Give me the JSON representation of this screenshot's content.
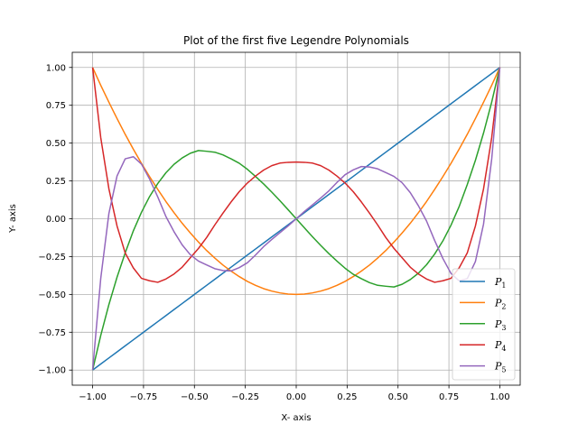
{
  "chart_data": {
    "type": "line",
    "title": "Plot of the first five Legendre Polynomials",
    "xlabel": "X- axis",
    "ylabel": "Y- axis",
    "xlim": [
      -1.1,
      1.1
    ],
    "ylim": [
      -1.1,
      1.1
    ],
    "xticks": [
      -1.0,
      -0.75,
      -0.5,
      -0.25,
      0.0,
      0.25,
      0.5,
      0.75,
      1.0
    ],
    "xtick_labels": [
      "−1.00",
      "−0.75",
      "−0.50",
      "−0.25",
      "0.00",
      "0.25",
      "0.50",
      "0.75",
      "1.00"
    ],
    "yticks": [
      -1.0,
      -0.75,
      -0.5,
      -0.25,
      0.0,
      0.25,
      0.5,
      0.75,
      1.0
    ],
    "ytick_labels": [
      "−1.00",
      "−0.75",
      "−0.50",
      "−0.25",
      "0.00",
      "0.25",
      "0.50",
      "0.75",
      "1.00"
    ],
    "grid": true,
    "legend_position": "lower-right",
    "x": [
      -1.0,
      -0.96,
      -0.92,
      -0.88,
      -0.84,
      -0.8,
      -0.76,
      -0.72,
      -0.68,
      -0.64,
      -0.6,
      -0.56,
      -0.52,
      -0.48,
      -0.44,
      -0.4,
      -0.36,
      -0.32,
      -0.28,
      -0.24,
      -0.2,
      -0.16,
      -0.12,
      -0.08,
      -0.04,
      0.0,
      0.04,
      0.08,
      0.12,
      0.16,
      0.2,
      0.24,
      0.28,
      0.32,
      0.36,
      0.4,
      0.44,
      0.48,
      0.52,
      0.56,
      0.6,
      0.64,
      0.68,
      0.72,
      0.76,
      0.8,
      0.84,
      0.88,
      0.92,
      0.96,
      1.0
    ],
    "series": [
      {
        "name": "P",
        "subscript": "1",
        "color": "#1f77b4",
        "values": [
          -1.0,
          -0.96,
          -0.92,
          -0.88,
          -0.84,
          -0.8,
          -0.76,
          -0.72,
          -0.68,
          -0.64,
          -0.6,
          -0.56,
          -0.52,
          -0.48,
          -0.44,
          -0.4,
          -0.36,
          -0.32,
          -0.28,
          -0.24,
          -0.2,
          -0.16,
          -0.12,
          -0.08,
          -0.04,
          0.0,
          0.04,
          0.08,
          0.12,
          0.16,
          0.2,
          0.24,
          0.28,
          0.32,
          0.36,
          0.4,
          0.44,
          0.48,
          0.52,
          0.56,
          0.6,
          0.64,
          0.68,
          0.72,
          0.76,
          0.8,
          0.84,
          0.88,
          0.92,
          0.96,
          1.0
        ]
      },
      {
        "name": "P",
        "subscript": "2",
        "color": "#ff7f0e",
        "values": [
          1.0,
          0.882,
          0.77,
          0.662,
          0.558,
          0.46,
          0.366,
          0.278,
          0.194,
          0.114,
          0.04,
          -0.03,
          -0.094,
          -0.154,
          -0.21,
          -0.26,
          -0.306,
          -0.346,
          -0.382,
          -0.414,
          -0.44,
          -0.462,
          -0.478,
          -0.49,
          -0.498,
          -0.5,
          -0.498,
          -0.49,
          -0.478,
          -0.462,
          -0.44,
          -0.414,
          -0.382,
          -0.346,
          -0.306,
          -0.26,
          -0.21,
          -0.154,
          -0.094,
          -0.03,
          0.04,
          0.114,
          0.194,
          0.278,
          0.366,
          0.46,
          0.558,
          0.662,
          0.77,
          0.882,
          1.0
        ]
      },
      {
        "name": "P",
        "subscript": "3",
        "color": "#2ca02c",
        "values": [
          -1.0,
          -0.771,
          -0.567,
          -0.386,
          -0.226,
          -0.08,
          0.043,
          0.147,
          0.233,
          0.304,
          0.36,
          0.402,
          0.433,
          0.451,
          0.446,
          0.44,
          0.422,
          0.396,
          0.367,
          0.327,
          0.28,
          0.23,
          0.176,
          0.119,
          0.06,
          0.0,
          -0.06,
          -0.119,
          -0.176,
          -0.23,
          -0.28,
          -0.327,
          -0.367,
          -0.396,
          -0.422,
          -0.44,
          -0.446,
          -0.451,
          -0.433,
          -0.402,
          -0.36,
          -0.304,
          -0.233,
          -0.147,
          -0.043,
          0.08,
          0.226,
          0.386,
          0.567,
          0.771,
          1.0
        ]
      },
      {
        "name": "P",
        "subscript": "4",
        "color": "#d62728",
        "values": [
          1.0,
          0.536,
          0.198,
          -0.048,
          -0.226,
          -0.325,
          -0.394,
          -0.41,
          -0.42,
          -0.398,
          -0.365,
          -0.32,
          -0.258,
          -0.196,
          -0.124,
          -0.041,
          0.037,
          0.111,
          0.179,
          0.236,
          0.282,
          0.322,
          0.351,
          0.368,
          0.373,
          0.375,
          0.373,
          0.368,
          0.351,
          0.322,
          0.282,
          0.236,
          0.179,
          0.111,
          0.037,
          -0.041,
          -0.124,
          -0.196,
          -0.258,
          -0.32,
          -0.365,
          -0.398,
          -0.42,
          -0.41,
          -0.394,
          -0.325,
          -0.226,
          -0.048,
          0.198,
          0.536,
          1.0
        ]
      },
      {
        "name": "P",
        "subscript": "5",
        "color": "#9467bd",
        "values": [
          -1.0,
          -0.394,
          0.035,
          0.283,
          0.396,
          0.41,
          0.361,
          0.262,
          0.144,
          0.015,
          -0.086,
          -0.173,
          -0.238,
          -0.28,
          -0.305,
          -0.33,
          -0.342,
          -0.345,
          -0.323,
          -0.291,
          -0.24,
          -0.184,
          -0.137,
          -0.092,
          -0.048,
          0.0,
          0.048,
          0.092,
          0.137,
          0.184,
          0.24,
          0.291,
          0.323,
          0.345,
          0.342,
          0.33,
          0.305,
          0.28,
          0.238,
          0.173,
          0.086,
          -0.015,
          -0.144,
          -0.262,
          -0.361,
          -0.41,
          -0.396,
          -0.283,
          -0.035,
          0.394,
          1.0
        ]
      }
    ]
  }
}
